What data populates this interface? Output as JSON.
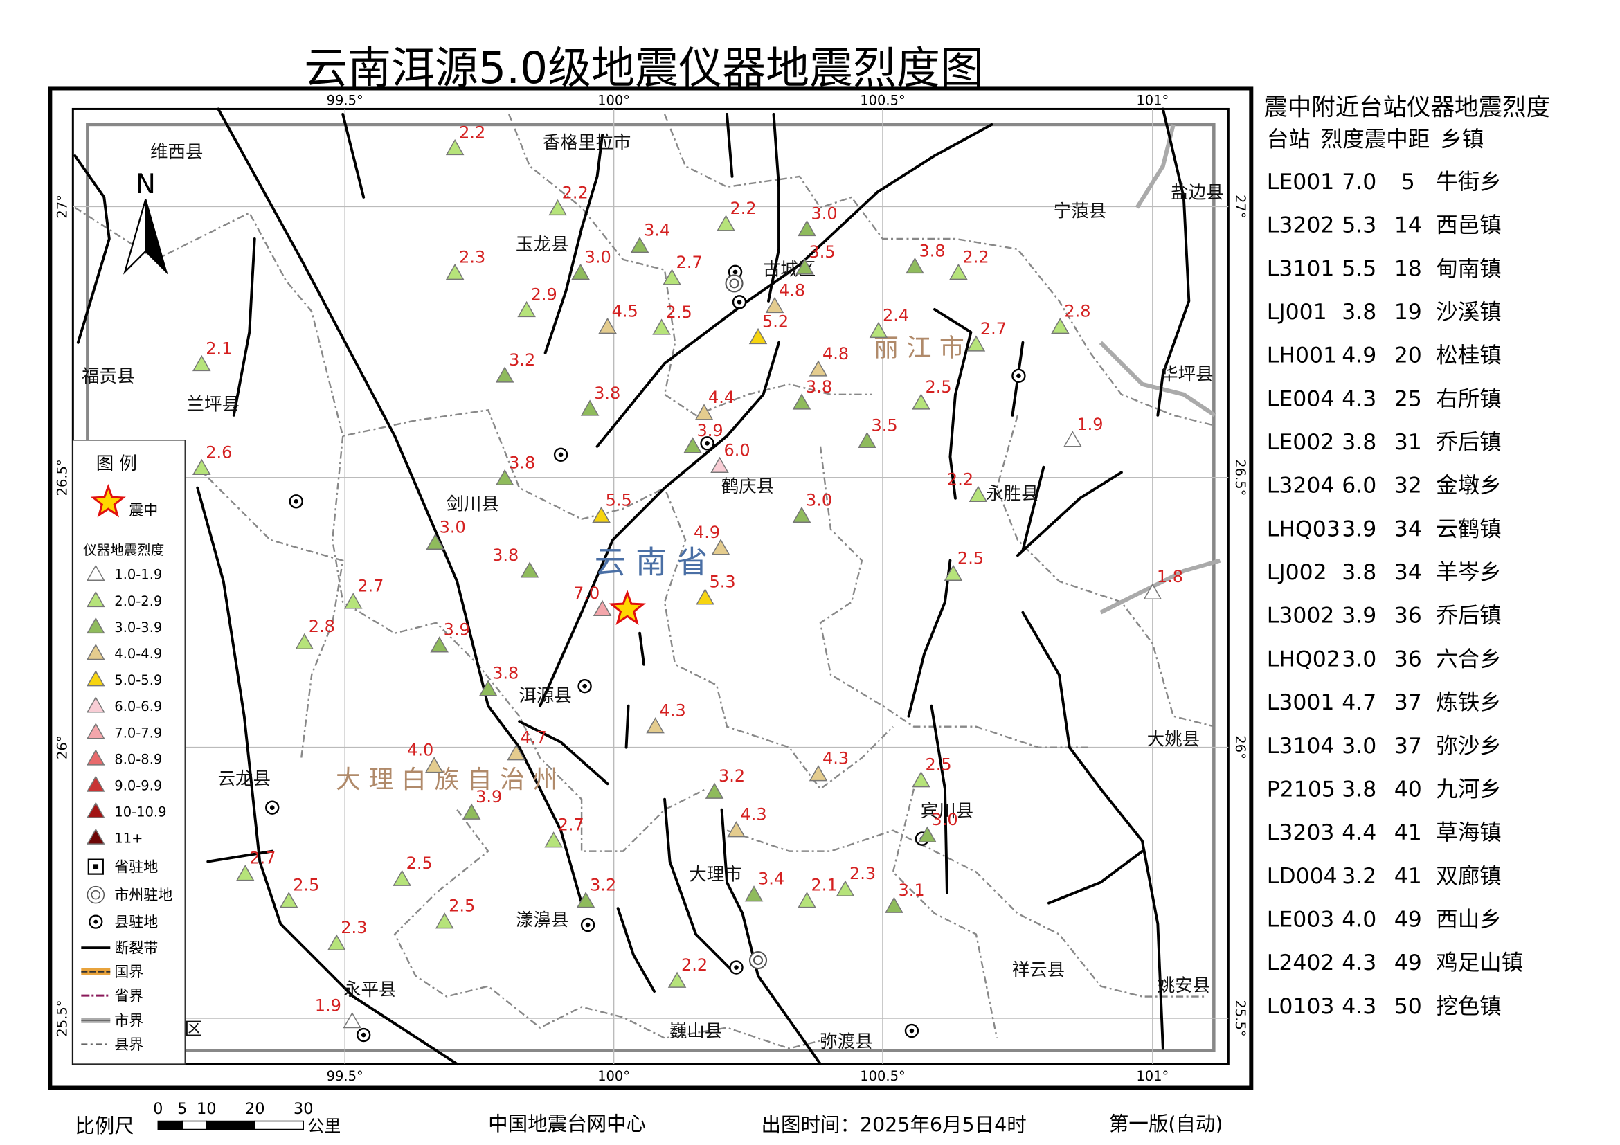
{
  "title": "云南洱源5.0级地震仪器地震烈度图",
  "map": {
    "lon_ticks": [
      "99.5°",
      "100°",
      "100.5°",
      "101°"
    ],
    "lat_ticks": [
      "27°",
      "26.5°",
      "26°",
      "25.5°"
    ],
    "north": "N",
    "places": [
      "维西县",
      "香格里拉市",
      "玉龙县",
      "古城区",
      "宁蒗县",
      "盐边县",
      "福贡县",
      "兰坪县",
      "华坪县",
      "鹤庆县",
      "永胜县",
      "剑川县",
      "洱源县",
      "大姚县",
      "云龙县",
      "宾川县",
      "大理市",
      "漾濞县",
      "祥云县",
      "姚安县",
      "永平县",
      "巍山县",
      "弥渡县",
      "区"
    ],
    "regions": [
      "丽 江 市",
      "云 南 省",
      "大 理 白 族 自 治 州"
    ],
    "stations": [
      "2.2",
      "2.2",
      "3.4",
      "2.2",
      "3.0",
      "2.3",
      "3.0",
      "2.7",
      "3.5",
      "3.8",
      "2.2",
      "2.9",
      "4.5",
      "2.5",
      "4.8",
      "5.2",
      "2.4",
      "2.7",
      "2.8",
      "2.1",
      "3.2",
      "4.8",
      "3.8",
      "4.4",
      "3.8",
      "2.5",
      "3.5",
      "1.9",
      "3.9",
      "6.0",
      "2.6",
      "3.8",
      "2.2",
      "5.5",
      "3.0",
      "3.0",
      "4.9",
      "3.8",
      "2.5",
      "1.8",
      "7.0",
      "5.3",
      "2.7",
      "2.8",
      "3.9",
      "3.8",
      "4.3",
      "4.0",
      "4.7",
      "4.3",
      "2.5",
      "3.2",
      "3.9",
      "4.3",
      "3.0",
      "2.7",
      "2.7",
      "2.5",
      "3.2",
      "3.4",
      "2.1",
      "2.3",
      "3.1",
      "2.5",
      "2.5",
      "2.3",
      "2.2",
      "1.9"
    ]
  },
  "legend": {
    "title": "图 例",
    "epicenter": "震中",
    "intensity_title": "仪器地震烈度",
    "classes": [
      {
        "label": "1.0-1.9",
        "color": "#ffffff"
      },
      {
        "label": "2.0-2.9",
        "color": "#b6e37a"
      },
      {
        "label": "3.0-3.9",
        "color": "#8fbb5c"
      },
      {
        "label": "4.0-4.9",
        "color": "#e4cc8e"
      },
      {
        "label": "5.0-5.9",
        "color": "#f6d410"
      },
      {
        "label": "6.0-6.9",
        "color": "#f8cdd5"
      },
      {
        "label": "7.0-7.9",
        "color": "#f3a6ab"
      },
      {
        "label": "8.0-8.9",
        "color": "#e86a6c"
      },
      {
        "label": "9.0-9.9",
        "color": "#c83434"
      },
      {
        "label": "10-10.9",
        "color": "#a21414"
      },
      {
        "label": "11+",
        "color": "#6e0606"
      }
    ],
    "symbols": [
      "省驻地",
      "市州驻地",
      "县驻地",
      "断裂带",
      "国界",
      "省界",
      "市界",
      "县界"
    ]
  },
  "table": {
    "title": "震中附近台站仪器地震烈度",
    "columns": [
      "台站",
      "烈度",
      "震中距",
      "乡镇"
    ],
    "rows": [
      [
        "LE001",
        "7.0",
        "5",
        "牛街乡"
      ],
      [
        "L3202",
        "5.3",
        "14",
        "西邑镇"
      ],
      [
        "L3101",
        "5.5",
        "18",
        "甸南镇"
      ],
      [
        "LJ001",
        "3.8",
        "19",
        "沙溪镇"
      ],
      [
        "LH001",
        "4.9",
        "20",
        "松桂镇"
      ],
      [
        "LE004",
        "4.3",
        "25",
        "右所镇"
      ],
      [
        "LE002",
        "3.8",
        "31",
        "乔后镇"
      ],
      [
        "L3204",
        "6.0",
        "32",
        "金墩乡"
      ],
      [
        "LHQ03",
        "3.9",
        "34",
        "云鹤镇"
      ],
      [
        "LJ002",
        "3.8",
        "34",
        "羊岑乡"
      ],
      [
        "L3002",
        "3.9",
        "36",
        "乔后镇"
      ],
      [
        "LHQ02",
        "3.0",
        "36",
        "六合乡"
      ],
      [
        "L3001",
        "4.7",
        "37",
        "炼铁乡"
      ],
      [
        "L3104",
        "3.0",
        "37",
        "弥沙乡"
      ],
      [
        "P2105",
        "3.8",
        "40",
        "九河乡"
      ],
      [
        "L3203",
        "4.4",
        "41",
        "草海镇"
      ],
      [
        "LD004",
        "3.2",
        "41",
        "双廊镇"
      ],
      [
        "LE003",
        "4.0",
        "49",
        "西山乡"
      ],
      [
        "L2402",
        "4.3",
        "49",
        "鸡足山镇"
      ],
      [
        "L0103",
        "4.3",
        "50",
        "挖色镇"
      ]
    ]
  },
  "footer": {
    "scale_label": "比例尺",
    "scale_ticks": [
      0,
      5,
      10,
      20,
      30
    ],
    "scale_unit": "公里",
    "agency": "中国地震台网中心",
    "time": "出图时间：2025年6月5日4时",
    "edition": "第一版(自动)"
  }
}
